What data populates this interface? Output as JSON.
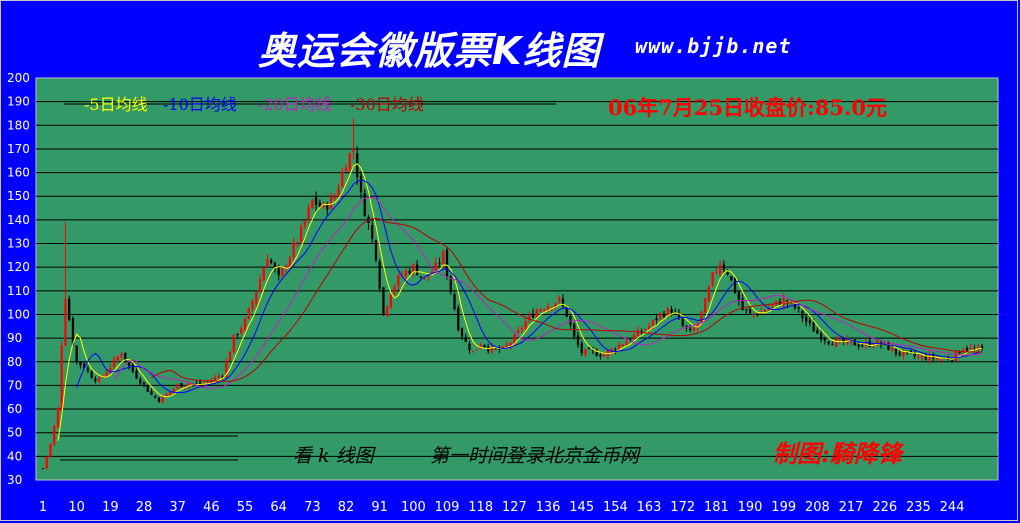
{
  "header": {
    "title": "奥运会徽版票K线图",
    "site": "www.bjjb.net"
  },
  "chart_data": {
    "type": "candlestick",
    "ylim": [
      30,
      200
    ],
    "yticks": [
      30,
      40,
      50,
      60,
      70,
      80,
      90,
      100,
      110,
      120,
      130,
      140,
      150,
      160,
      170,
      180,
      190,
      200
    ],
    "xtick_labels": [
      "1",
      "10",
      "19",
      "28",
      "37",
      "46",
      "55",
      "64",
      "73",
      "82",
      "91",
      "100",
      "109",
      "118",
      "127",
      "136",
      "145",
      "154",
      "163",
      "172",
      "181",
      "190",
      "199",
      "208",
      "217",
      "226",
      "235",
      "244"
    ],
    "x_range": [
      1,
      252
    ],
    "legend": [
      {
        "text": "-5日均线",
        "color": "#ffff00"
      },
      {
        "text": "-10日均线",
        "color": "#0000ff"
      },
      {
        "text": "-20日均线",
        "color": "#c020c0"
      },
      {
        "text": "-30日均线",
        "color": "#c00000"
      }
    ],
    "closing_note": "06年7月25日收盘价:85.0元",
    "footer_text_1": "看 k 线图",
    "footer_text_2": "第一时间登录北京金币网",
    "author": "制图:騎降锋",
    "close_anchors": [
      [
        1,
        35
      ],
      [
        3,
        45
      ],
      [
        5,
        60
      ],
      [
        6,
        88
      ],
      [
        7,
        108
      ],
      [
        8,
        98
      ],
      [
        9,
        88
      ],
      [
        10,
        80
      ],
      [
        12,
        78
      ],
      [
        14,
        74
      ],
      [
        16,
        72
      ],
      [
        18,
        76
      ],
      [
        20,
        80
      ],
      [
        22,
        84
      ],
      [
        24,
        78
      ],
      [
        26,
        74
      ],
      [
        28,
        70
      ],
      [
        30,
        66
      ],
      [
        32,
        64
      ],
      [
        34,
        66
      ],
      [
        37,
        70
      ],
      [
        40,
        71
      ],
      [
        43,
        70
      ],
      [
        46,
        72
      ],
      [
        49,
        75
      ],
      [
        52,
        90
      ],
      [
        55,
        97
      ],
      [
        58,
        110
      ],
      [
        61,
        125
      ],
      [
        64,
        115
      ],
      [
        67,
        125
      ],
      [
        70,
        135
      ],
      [
        73,
        148
      ],
      [
        76,
        145
      ],
      [
        79,
        150
      ],
      [
        82,
        165
      ],
      [
        84,
        170
      ],
      [
        86,
        150
      ],
      [
        88,
        138
      ],
      [
        90,
        125
      ],
      [
        92,
        100
      ],
      [
        94,
        110
      ],
      [
        96,
        115
      ],
      [
        98,
        118
      ],
      [
        100,
        120
      ],
      [
        103,
        115
      ],
      [
        106,
        120
      ],
      [
        108,
        125
      ],
      [
        110,
        110
      ],
      [
        112,
        95
      ],
      [
        114,
        88
      ],
      [
        116,
        84
      ],
      [
        118,
        88
      ],
      [
        121,
        85
      ],
      [
        124,
        85
      ],
      [
        127,
        90
      ],
      [
        130,
        97
      ],
      [
        133,
        102
      ],
      [
        136,
        104
      ],
      [
        139,
        106
      ],
      [
        141,
        100
      ],
      [
        143,
        90
      ],
      [
        145,
        84
      ],
      [
        148,
        84
      ],
      [
        151,
        83
      ],
      [
        154,
        86
      ],
      [
        157,
        89
      ],
      [
        160,
        92
      ],
      [
        163,
        95
      ],
      [
        166,
        100
      ],
      [
        169,
        102
      ],
      [
        172,
        95
      ],
      [
        174,
        92
      ],
      [
        176,
        96
      ],
      [
        178,
        105
      ],
      [
        180,
        116
      ],
      [
        182,
        122
      ],
      [
        184,
        118
      ],
      [
        186,
        110
      ],
      [
        188,
        102
      ],
      [
        190,
        100
      ],
      [
        193,
        101
      ],
      [
        196,
        104
      ],
      [
        199,
        106
      ],
      [
        202,
        103
      ],
      [
        205,
        97
      ],
      [
        208,
        92
      ],
      [
        211,
        89
      ],
      [
        214,
        88
      ],
      [
        217,
        88
      ],
      [
        220,
        87
      ],
      [
        223,
        88
      ],
      [
        226,
        87
      ],
      [
        229,
        84
      ],
      [
        232,
        83
      ],
      [
        235,
        82
      ],
      [
        238,
        82
      ],
      [
        241,
        81
      ],
      [
        244,
        82
      ],
      [
        247,
        86
      ],
      [
        250,
        85
      ],
      [
        252,
        85
      ]
    ]
  }
}
